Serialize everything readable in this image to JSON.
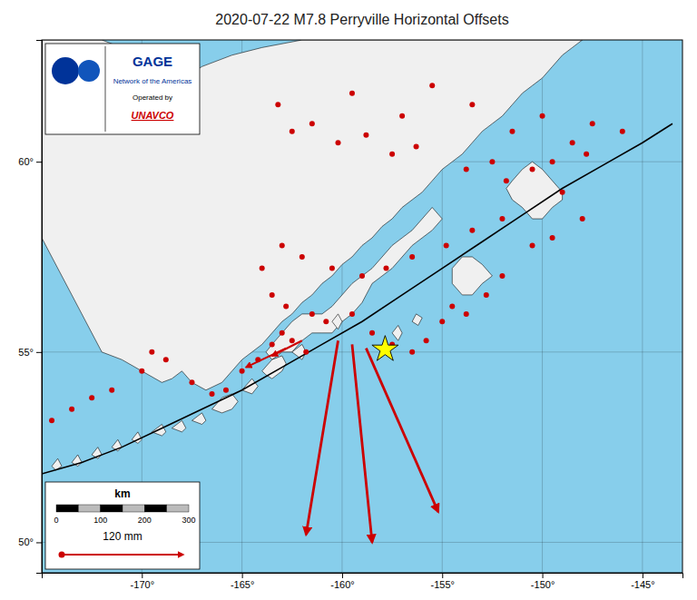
{
  "chart_data": {
    "type": "map",
    "title": "2020-07-22 M7.8 Perryville Horizontal Offsets",
    "xlim": [
      -175,
      -143
    ],
    "ylim": [
      49.2,
      63.2
    ],
    "xticks": [
      {
        "value": -170,
        "label": "-170°"
      },
      {
        "value": -165,
        "label": "-165°"
      },
      {
        "value": -160,
        "label": "-160°"
      },
      {
        "value": -155,
        "label": "-155°"
      },
      {
        "value": -150,
        "label": "-150°"
      },
      {
        "value": -145,
        "label": "-145°"
      }
    ],
    "yticks": [
      {
        "value": 50,
        "label": "50°"
      },
      {
        "value": 55,
        "label": "55°"
      },
      {
        "value": 60,
        "label": "60°"
      }
    ],
    "grid": true,
    "ocean": {
      "color": "#87CEEB"
    },
    "land": {
      "color": "#F0F0F0",
      "edge_color": "#111111",
      "polygons": [
        {
          "x": [
            -168.0,
            -167.5,
            -166.8,
            -166.0,
            -165.5,
            -165.0,
            -164.5,
            -164.0,
            -163.5,
            -163.0,
            -162.5,
            -162.0,
            -161.5,
            -161.0,
            -160.5,
            -160.0,
            -159.5,
            -159.0,
            -158.5,
            -158.0,
            -157.5,
            -157.0,
            -156.5,
            -156.0,
            -155.5,
            -155.0,
            -154.5,
            -154.0,
            -153.5,
            -153.0,
            -152.5,
            -152.0,
            -151.5,
            -151.0,
            -150.5,
            -150.0,
            -149.5,
            -149.0,
            -148.5,
            -148.0,
            -150.0,
            -153.0,
            -156.0,
            -159.0,
            -162.0,
            -164.0,
            -165.5,
            -167.0,
            -168.5,
            -169.5,
            -170.0,
            -171.0,
            -172.0,
            -175.0,
            -175.0,
            -174.5,
            -174.0,
            -173.5,
            -173.0,
            -172.5,
            -172.0,
            -171.0,
            -170.0,
            -169.0,
            -168.5,
            -168.0
          ],
          "y": [
            54.5,
            54.2,
            54.0,
            54.2,
            54.5,
            54.8,
            55.0,
            55.2,
            55.5,
            55.8,
            56.0,
            56.3,
            56.5,
            56.8,
            57.0,
            57.3,
            57.5,
            57.8,
            58.0,
            58.3,
            58.5,
            58.8,
            59.0,
            59.2,
            59.5,
            59.8,
            60.0,
            60.2,
            60.5,
            60.8,
            61.0,
            61.2,
            61.5,
            61.8,
            62.0,
            62.2,
            62.5,
            62.8,
            63.0,
            63.2,
            63.2,
            63.2,
            63.2,
            63.2,
            63.2,
            63.0,
            62.8,
            62.5,
            62.0,
            62.2,
            62.0,
            63.0,
            63.2,
            63.2,
            58.0,
            57.5,
            57.0,
            56.5,
            56.0,
            55.5,
            55.0,
            54.8,
            54.5,
            54.2,
            54.3,
            54.5
          ]
        },
        {
          "x": [
            -155.0,
            -155.5,
            -156.0,
            -156.5,
            -157.0,
            -157.5,
            -158.0,
            -158.5,
            -158.8,
            -159.0,
            -159.5,
            -160.0,
            -160.5,
            -161.0,
            -161.5,
            -162.0,
            -162.5,
            -163.0,
            -163.5,
            -163.8,
            -163.5,
            -163.0,
            -162.5,
            -162.0,
            -161.5,
            -161.0,
            -160.5,
            -160.0,
            -159.5,
            -159.0,
            -158.5,
            -158.0,
            -157.5,
            -157.0,
            -156.5,
            -156.0,
            -155.5,
            -155.0
          ],
          "y": [
            58.5,
            58.2,
            58.0,
            57.8,
            57.5,
            57.2,
            57.0,
            56.8,
            56.5,
            56.3,
            56.0,
            55.8,
            55.5,
            55.5,
            55.5,
            55.3,
            55.0,
            55.0,
            54.8,
            55.0,
            55.2,
            55.5,
            55.8,
            56.0,
            56.0,
            56.0,
            56.2,
            56.5,
            56.8,
            57.0,
            57.2,
            57.5,
            57.8,
            58.0,
            58.2,
            58.5,
            58.8,
            58.5
          ]
        },
        {
          "x": [
            -152.5,
            -153.0,
            -153.5,
            -154.0,
            -154.5,
            -154.5,
            -154.0,
            -153.5,
            -153.0,
            -152.5
          ],
          "y": [
            57.0,
            56.8,
            56.5,
            56.5,
            56.8,
            57.2,
            57.5,
            57.5,
            57.3,
            57.0
          ]
        },
        {
          "x": [
            -149.0,
            -149.5,
            -150.0,
            -150.5,
            -151.0,
            -151.5,
            -151.8,
            -151.5,
            -151.0,
            -150.5,
            -150.0,
            -149.5,
            -149.0,
            -149.0
          ],
          "y": [
            59.0,
            58.8,
            58.5,
            58.5,
            58.8,
            59.0,
            59.3,
            59.5,
            59.8,
            60.0,
            59.8,
            59.5,
            59.2,
            59.0
          ]
        },
        {
          "x": [
            -174.5,
            -174.2,
            -174.0,
            -174.3,
            -174.5
          ],
          "y": [
            52.0,
            52.2,
            52.0,
            51.9,
            52.0
          ]
        },
        {
          "x": [
            -173.5,
            -173.2,
            -173.0,
            -173.2,
            -173.5
          ],
          "y": [
            52.1,
            52.3,
            52.1,
            52.0,
            52.1
          ]
        },
        {
          "x": [
            -172.5,
            -172.2,
            -172.0,
            -172.2,
            -172.5
          ],
          "y": [
            52.3,
            52.5,
            52.3,
            52.2,
            52.3
          ]
        },
        {
          "x": [
            -171.5,
            -171.2,
            -171.0,
            -171.2,
            -171.5
          ],
          "y": [
            52.5,
            52.7,
            52.5,
            52.4,
            52.5
          ]
        },
        {
          "x": [
            -170.5,
            -170.2,
            -170.0,
            -170.2,
            -170.5
          ],
          "y": [
            52.7,
            52.9,
            52.7,
            52.6,
            52.7
          ]
        },
        {
          "x": [
            -169.5,
            -169.0,
            -168.8,
            -169.0,
            -169.5
          ],
          "y": [
            52.9,
            53.1,
            52.9,
            52.8,
            52.9
          ]
        },
        {
          "x": [
            -168.5,
            -168.0,
            -167.8,
            -168.0,
            -168.5
          ],
          "y": [
            53.0,
            53.2,
            53.0,
            52.9,
            53.0
          ]
        },
        {
          "x": [
            -167.5,
            -167.0,
            -166.8,
            -167.0,
            -167.5
          ],
          "y": [
            53.2,
            53.4,
            53.2,
            53.1,
            53.2
          ]
        },
        {
          "x": [
            -166.5,
            -166.0,
            -165.5,
            -165.2,
            -165.5,
            -166.0,
            -166.5
          ],
          "y": [
            53.5,
            53.8,
            53.9,
            53.7,
            53.5,
            53.4,
            53.5
          ]
        },
        {
          "x": [
            -165.0,
            -164.5,
            -164.2,
            -164.5,
            -165.0
          ],
          "y": [
            54.0,
            54.3,
            54.1,
            53.9,
            54.0
          ]
        },
        {
          "x": [
            -164.0,
            -163.5,
            -163.0,
            -162.8,
            -163.0,
            -163.5,
            -163.8,
            -164.0
          ],
          "y": [
            54.5,
            54.8,
            54.9,
            54.7,
            54.5,
            54.3,
            54.4,
            54.5
          ]
        },
        {
          "x": [
            -162.5,
            -162.0,
            -161.8,
            -162.0,
            -162.5
          ],
          "y": [
            55.0,
            55.2,
            55.0,
            54.8,
            55.0
          ]
        },
        {
          "x": [
            -156.5,
            -156.3,
            -156.0,
            -156.2,
            -156.5
          ],
          "y": [
            55.8,
            56.0,
            55.9,
            55.7,
            55.8
          ]
        },
        {
          "x": [
            -157.5,
            -157.2,
            -157.0,
            -157.2,
            -157.5
          ],
          "y": [
            55.5,
            55.7,
            55.5,
            55.3,
            55.5
          ]
        },
        {
          "x": [
            -160.5,
            -160.2,
            -160.0,
            -160.2,
            -160.5
          ],
          "y": [
            55.8,
            56.0,
            55.8,
            55.6,
            55.8
          ]
        }
      ]
    },
    "subduction_zone": {
      "color": "#000000",
      "x": [
        -175.0,
        -173.0,
        -171.0,
        -169.0,
        -167.0,
        -165.0,
        -163.0,
        -161.0,
        -159.0,
        -157.0,
        -155.0,
        -153.0,
        -151.0,
        -149.0,
        -147.0,
        -145.0,
        -143.5
      ],
      "y": [
        51.8,
        52.1,
        52.5,
        53.0,
        53.5,
        54.0,
        54.6,
        55.2,
        55.8,
        56.5,
        57.2,
        57.9,
        58.6,
        59.3,
        59.9,
        60.5,
        61.0
      ]
    },
    "stations": {
      "color": "#CC0000",
      "x": [
        -162.5,
        -160.2,
        -158.8,
        -157.5,
        -156.3,
        -153.8,
        -152.5,
        -151.8,
        -150.5,
        -149.5,
        -148.5,
        -147.8,
        -149.0,
        -152.0,
        -153.5,
        -154.8,
        -156.5,
        -157.8,
        -159.0,
        -160.5,
        -162.0,
        -163.0,
        -164.0,
        -163.5,
        -162.8,
        -161.5,
        -160.8,
        -159.5,
        -158.5,
        -157.5,
        -156.5,
        -155.8,
        -155.0,
        -154.5,
        -153.8,
        -152.8,
        -152.0,
        -150.5,
        -149.5,
        -148.0,
        -170.0,
        -169.5,
        -168.8,
        -167.5,
        -166.5,
        -165.8,
        -165.0,
        -164.2,
        -163.5,
        -163.0,
        -162.5,
        -161.8,
        -171.5,
        -172.5,
        -173.5,
        -174.5,
        -163.2,
        -161.5,
        -159.5,
        -157.0,
        -155.5,
        -153.5,
        -146.0,
        -147.5,
        -150.0,
        -151.5
      ],
      "y": [
        60.8,
        60.5,
        60.7,
        60.2,
        60.4,
        59.8,
        60.0,
        59.5,
        59.8,
        60.0,
        60.5,
        60.2,
        59.2,
        58.5,
        58.2,
        57.8,
        57.5,
        57.2,
        57.0,
        57.2,
        57.5,
        57.8,
        57.2,
        56.5,
        56.2,
        56.0,
        55.8,
        56.0,
        55.5,
        55.2,
        55.0,
        55.3,
        55.8,
        56.2,
        56.0,
        56.5,
        57.0,
        57.8,
        58.0,
        58.5,
        54.5,
        55.0,
        54.8,
        54.2,
        53.9,
        54.0,
        54.5,
        54.8,
        55.2,
        55.5,
        55.3,
        55.0,
        54.0,
        53.8,
        53.5,
        53.2,
        61.5,
        61.0,
        61.8,
        61.2,
        62.0,
        61.5,
        60.8,
        61.0,
        61.2,
        60.8
      ]
    },
    "epicenter": {
      "color": "yellow",
      "edge_color": "#000000",
      "marker": "star",
      "x": -157.85,
      "y": 55.07
    },
    "arrows": {
      "color": "#CC0000",
      "large": {
        "x0": [
          -160.2,
          -159.5,
          -158.8
        ],
        "y0": [
          55.3,
          55.2,
          55.1
        ],
        "x1": [
          -161.8,
          -158.5,
          -155.2
        ],
        "y1": [
          50.2,
          50.0,
          50.8
        ]
      },
      "small": {
        "x0": [
          -162.8,
          -162.0
        ],
        "y0": [
          55.1,
          55.3
        ],
        "x1": [
          -164.8,
          -163.5
        ],
        "y1": [
          54.6,
          54.9
        ]
      }
    },
    "scale_bar": {
      "title": "km",
      "ticks": [
        0,
        100,
        200,
        300
      ],
      "colors": [
        "#000000",
        "#BBBBBB"
      ],
      "arrow_label": "120 mm"
    },
    "logo": {
      "texts": [
        {
          "text": "GAGE",
          "color": "#003399"
        },
        {
          "text": "Network of the Americas",
          "color": "#003399"
        },
        {
          "text": "Operated by",
          "color": "#000000"
        },
        {
          "text": "UNAVCO",
          "color": "#CC0000"
        }
      ],
      "badge_colors": [
        "#003399",
        "#1155BB"
      ]
    }
  }
}
